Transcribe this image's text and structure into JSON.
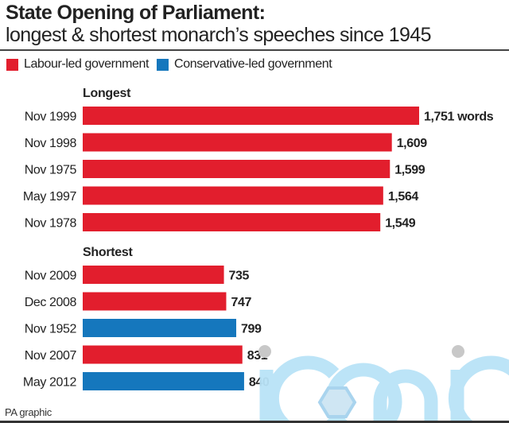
{
  "header": {
    "title": "State Opening of Parliament:",
    "subtitle": "longest & shortest monarch’s speeches since 1945"
  },
  "legend": [
    {
      "label": "Labour-led government",
      "color": "#e21e2d"
    },
    {
      "label": "Conservative-led government",
      "color": "#1577bd"
    }
  ],
  "footer": {
    "source": "PA graphic"
  },
  "watermark": {
    "text": "iconic"
  },
  "chart_data": {
    "type": "bar",
    "orientation": "horizontal",
    "title": "State Opening of Parliament: longest & shortest monarch’s speeches since 1945",
    "unit": "words",
    "xlim": [
      0,
      1751
    ],
    "grid": false,
    "legend_position": "top-left",
    "groups": [
      {
        "label": "Longest",
        "bars": [
          {
            "category": "Nov 1999",
            "value": 1751,
            "label": "1,751 words",
            "party": "Labour"
          },
          {
            "category": "Nov 1998",
            "value": 1609,
            "label": "1,609",
            "party": "Labour"
          },
          {
            "category": "Nov 1975",
            "value": 1599,
            "label": "1,599",
            "party": "Labour"
          },
          {
            "category": "May 1997",
            "value": 1564,
            "label": "1,564",
            "party": "Labour"
          },
          {
            "category": "Nov 1978",
            "value": 1549,
            "label": "1,549",
            "party": "Labour"
          }
        ]
      },
      {
        "label": "Shortest",
        "bars": [
          {
            "category": "Nov 2009",
            "value": 735,
            "label": "735",
            "party": "Labour"
          },
          {
            "category": "Dec 2008",
            "value": 747,
            "label": "747",
            "party": "Labour"
          },
          {
            "category": "Nov 1952",
            "value": 799,
            "label": "799",
            "party": "Conservative"
          },
          {
            "category": "Nov 2007",
            "value": 831,
            "label": "831",
            "party": "Labour"
          },
          {
            "category": "May 2012",
            "value": 840,
            "label": "840",
            "party": "Conservative"
          }
        ]
      }
    ],
    "colors": {
      "Labour": "#e21e2d",
      "Conservative": "#1577bd"
    }
  }
}
